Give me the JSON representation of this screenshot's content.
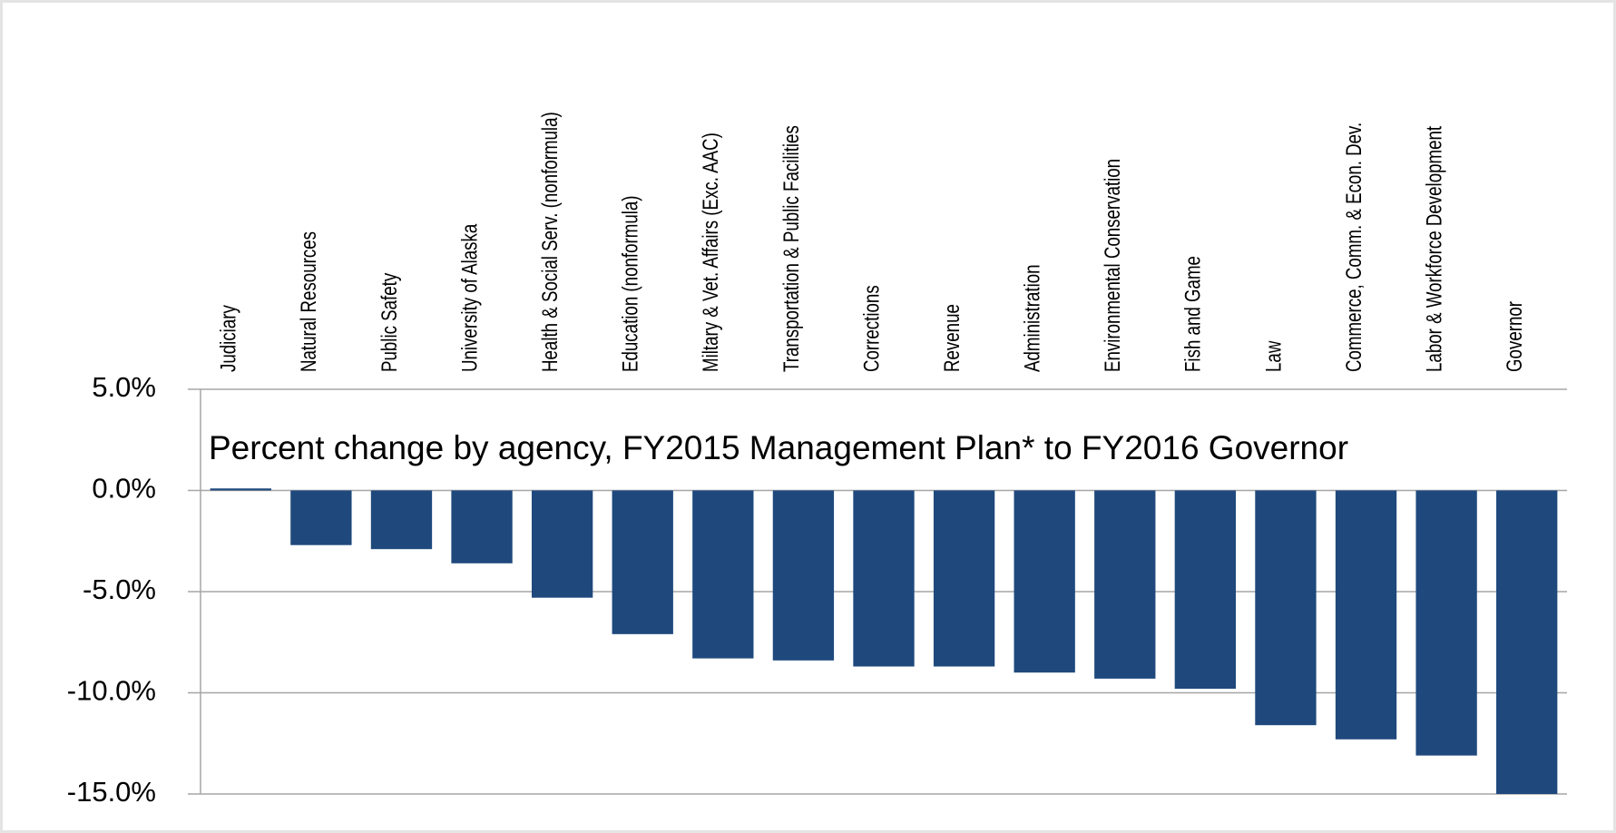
{
  "chart_data": {
    "type": "bar",
    "title": "Percent change by agency, FY2015 Management Plan* to FY2016 Governor",
    "categories": [
      "Judiciary",
      "Natural Resources",
      "Public Safety",
      "University of Alaska",
      "Health & Social Serv. (nonformula)",
      "Education (nonformula)",
      "Miltary & Vet. Affairs (Exc. AAC)",
      "Transportation & Public Facilities",
      "Corrections",
      "Revenue",
      "Administration",
      "Environmental Conservation",
      "Fish and Game",
      "Law",
      "Commerce, Comm. & Econ. Dev.",
      "Labor & Workforce Development",
      "Governor"
    ],
    "values": [
      0.1,
      -2.7,
      -2.9,
      -3.6,
      -5.3,
      -7.1,
      -8.3,
      -8.4,
      -8.7,
      -8.7,
      -9.0,
      -9.3,
      -9.8,
      -11.6,
      -12.3,
      -13.1,
      -15.0
    ],
    "color": "#1f497d",
    "ylim": [
      -15,
      5
    ],
    "yticks": [
      {
        "value": -15,
        "label": "-15.0%"
      },
      {
        "value": -10,
        "label": "-10.0%"
      },
      {
        "value": -5,
        "label": "-5.0%"
      },
      {
        "value": 0,
        "label": "0.0%"
      },
      {
        "value": 5,
        "label": "5.0%"
      }
    ],
    "grid": true
  }
}
